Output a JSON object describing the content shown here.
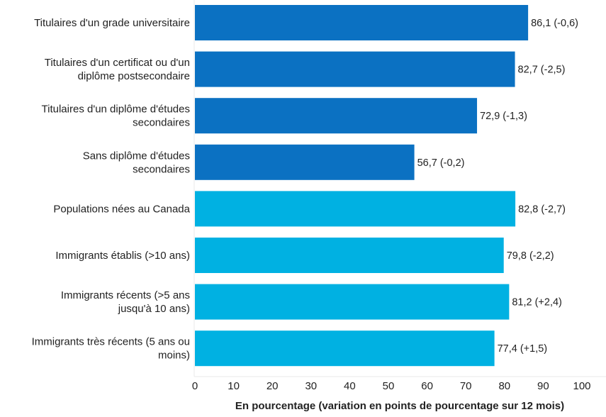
{
  "chart_data": {
    "type": "bar",
    "orientation": "horizontal",
    "categories": [
      "Titulaires d'un grade universitaire",
      "Titulaires d'un certificat ou d'un diplôme postsecondaire",
      "Titulaires d'un diplôme d'études secondaires",
      "Sans diplôme d'études secondaires",
      "Populations nées au Canada",
      "Immigrants établis (>10 ans)",
      "Immigrants récents (>5 ans jusqu'à 10 ans)",
      "Immigrants très récents (5 ans ou moins)"
    ],
    "category_lines": [
      [
        "Titulaires d'un grade universitaire"
      ],
      [
        "Titulaires d'un certificat ou d'un",
        "diplôme postsecondaire"
      ],
      [
        "Titulaires d'un diplôme d'études",
        "secondaires"
      ],
      [
        "Sans diplôme d'études",
        "secondaires"
      ],
      [
        "Populations nées au Canada"
      ],
      [
        "Immigrants établis (>10 ans)"
      ],
      [
        "Immigrants récents (>5 ans",
        "jusqu'à 10 ans)"
      ],
      [
        "Immigrants très récents (5 ans ou",
        "moins)"
      ]
    ],
    "values": [
      86.1,
      82.7,
      72.9,
      56.7,
      82.8,
      79.8,
      81.2,
      77.4
    ],
    "data_labels": [
      "86,1 (-0,6)",
      "82,7 (-2,5)",
      "72,9 (-1,3)",
      "56,7 (-0,2)",
      "82,8 (-2,7)",
      "79,8 (-2,2)",
      "81,2 (+2,4)",
      "77,4 (+1,5)"
    ],
    "colors": [
      "#0b71c2",
      "#0b71c2",
      "#0b71c2",
      "#0b71c2",
      "#00b1e2",
      "#00b1e2",
      "#00b1e2",
      "#00b1e2"
    ],
    "xlabel": "En pourcentage (variation en points de pourcentage sur 12 mois)",
    "xlim": [
      0,
      100
    ],
    "xticks": [
      "0",
      "10",
      "20",
      "30",
      "40",
      "50",
      "60",
      "70",
      "80",
      "90",
      "100"
    ],
    "grid": false,
    "legend": "none"
  }
}
